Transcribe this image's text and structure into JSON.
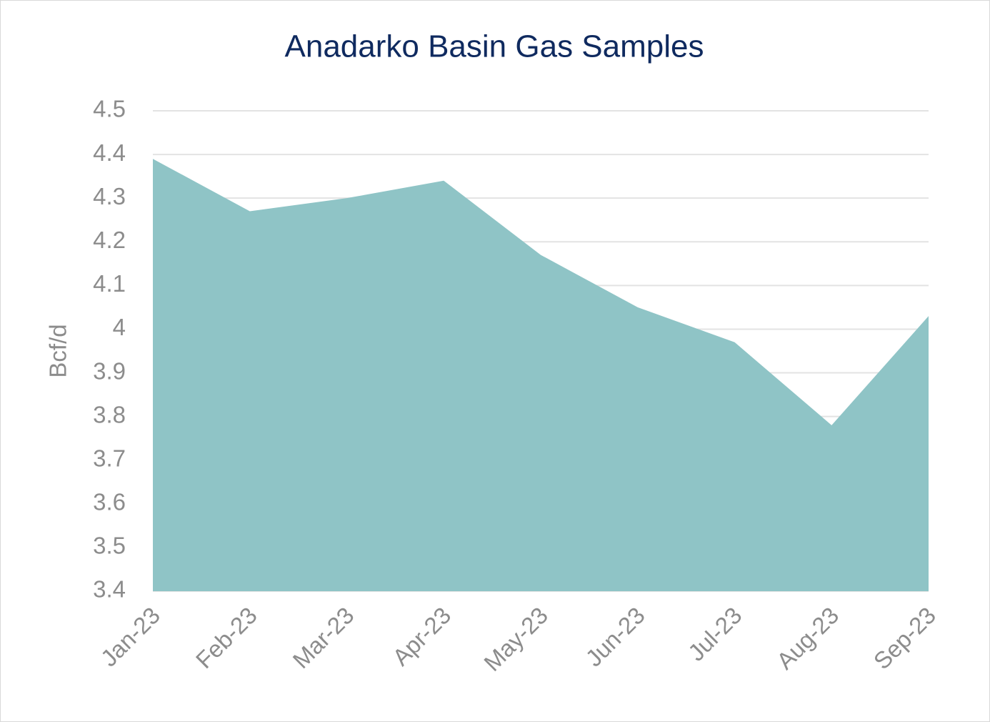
{
  "chart_data": {
    "type": "area",
    "title": "Anadarko Basin Gas Samples",
    "y_label": "Bcf/d",
    "categories": [
      "Jan-23",
      "Feb-23",
      "Mar-23",
      "Apr-23",
      "May-23",
      "Jun-23",
      "Jul-23",
      "Aug-23",
      "Sep-23"
    ],
    "values": [
      4.39,
      4.27,
      4.3,
      4.34,
      4.17,
      4.05,
      3.97,
      3.78,
      4.03
    ],
    "color": "#8fc4c6",
    "ylim": [
      3.4,
      4.5
    ],
    "yticks": [
      3.4,
      3.5,
      3.6,
      3.7,
      3.8,
      3.9,
      4,
      4.1,
      4.2,
      4.3,
      4.4,
      4.5
    ],
    "grid": true
  }
}
